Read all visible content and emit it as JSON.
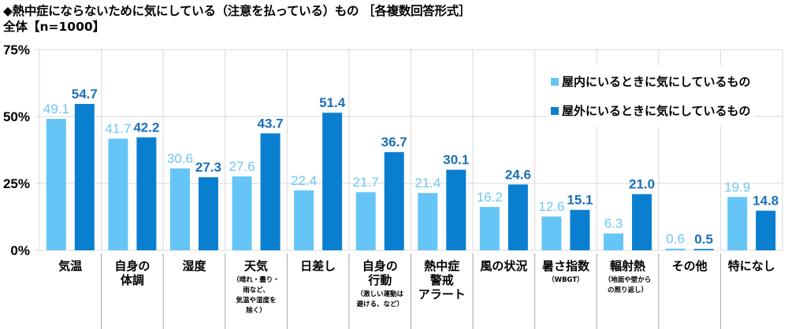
{
  "header": {
    "title": "◆熱中症にならないために気にしている（注意を払っている）もの ［各複数回答形式］",
    "subtitle": "全体【n=1000】"
  },
  "colors": {
    "indoor": "#66c5f7",
    "outdoor": "#0a7fd0",
    "indoor_label": "#6ec6f5",
    "outdoor_label": "#1a6fb8",
    "grid": "#d9d9d9",
    "separator": "#a6a6a6"
  },
  "chart_data": {
    "type": "bar",
    "title": "◆熱中症にならないために気にしている（注意を払っている）もの ［各複数回答形式］",
    "subtitle": "全体【n=1000】",
    "xlabel": "",
    "ylabel": "",
    "ylim": [
      0,
      75
    ],
    "yticks": [
      0,
      25,
      50,
      75
    ],
    "ytick_labels": [
      "0%",
      "25%",
      "50%",
      "75%"
    ],
    "grid": true,
    "legend_position": "top-right",
    "categories": [
      {
        "main": [
          "気温"
        ],
        "sub": []
      },
      {
        "main": [
          "自身の",
          "体調"
        ],
        "sub": []
      },
      {
        "main": [
          "湿度"
        ],
        "sub": []
      },
      {
        "main": [
          "天気"
        ],
        "sub": [
          "（晴れ・曇り・",
          "雨など、",
          "気温や湿度を",
          "除く）"
        ]
      },
      {
        "main": [
          "日差し"
        ],
        "sub": []
      },
      {
        "main": [
          "自身の",
          "行動"
        ],
        "sub": [
          "（激しい運動は",
          "避ける、など）"
        ]
      },
      {
        "main": [
          "熱中症",
          "警戒",
          "アラート"
        ],
        "sub": []
      },
      {
        "main": [
          "風の状況"
        ],
        "sub": []
      },
      {
        "main": [
          "暑さ指数"
        ],
        "sub": [
          "（WBGT）"
        ]
      },
      {
        "main": [
          "輻射熱"
        ],
        "sub": [
          "（地面や壁から",
          "の照り返し）"
        ]
      },
      {
        "main": [
          "その他"
        ],
        "sub": []
      },
      {
        "main": [
          "特になし"
        ],
        "sub": []
      }
    ],
    "series": [
      {
        "name": "屋内にいるときに気にしているもの",
        "values": [
          49.1,
          41.7,
          30.6,
          27.6,
          22.4,
          21.7,
          21.4,
          16.2,
          12.6,
          6.3,
          0.6,
          19.9
        ]
      },
      {
        "name": "屋外にいるときに気にしているもの",
        "values": [
          54.7,
          42.2,
          27.3,
          43.7,
          51.4,
          36.7,
          30.1,
          24.6,
          15.1,
          21.0,
          0.5,
          14.8
        ]
      }
    ]
  }
}
